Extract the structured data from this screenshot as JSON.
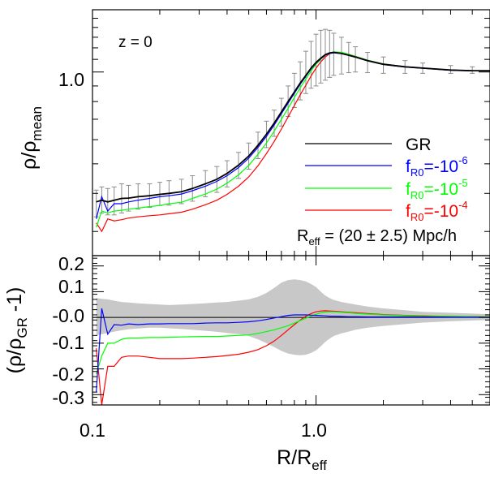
{
  "chart_data": [
    {
      "type": "line",
      "panel": "top",
      "annotation": "z = 0",
      "ylabel": "ρ/ρ_mean",
      "ylabel_main": "ρ/ρ",
      "ylabel_sub": "mean",
      "xscale": "log",
      "yscale": "log",
      "xlim": [
        0.1,
        6.0
      ],
      "ylim": [
        0.25,
        1.6
      ],
      "ytick_labels": [
        {
          "value": 1.0,
          "label": "1.0"
        }
      ],
      "legend_position": "center-right",
      "legend": [
        {
          "main": "GR",
          "sub": "",
          "eq": "",
          "sup": "",
          "color": "#000000"
        },
        {
          "main": "f",
          "sub": "R0",
          "eq": "=-10",
          "sup": "-6",
          "color": "#0000ff"
        },
        {
          "main": "f",
          "sub": "R0",
          "eq": "=-10",
          "sup": "-5",
          "color": "#00ff00"
        },
        {
          "main": "f",
          "sub": "R0",
          "eq": "=-10",
          "sup": "-4",
          "color": "#ff0000"
        }
      ],
      "radius_note": {
        "pre": "R",
        "sub": "eff",
        "post": " = (20 ± 2.5) Mpc/h"
      },
      "x": [
        0.104,
        0.11,
        0.117,
        0.125,
        0.135,
        0.145,
        0.16,
        0.18,
        0.2,
        0.22,
        0.25,
        0.28,
        0.32,
        0.36,
        0.4,
        0.45,
        0.5,
        0.55,
        0.6,
        0.65,
        0.7,
        0.75,
        0.8,
        0.85,
        0.9,
        0.95,
        1.0,
        1.05,
        1.1,
        1.15,
        1.2,
        1.3,
        1.4,
        1.5,
        1.7,
        2.0,
        2.5,
        3.0,
        4.0,
        5.0,
        6.0
      ],
      "series": [
        {
          "name": "GR",
          "color": "#000000",
          "values": [
            0.375,
            0.38,
            0.375,
            0.38,
            0.385,
            0.386,
            0.39,
            0.393,
            0.397,
            0.4,
            0.405,
            0.415,
            0.43,
            0.445,
            0.465,
            0.495,
            0.53,
            0.575,
            0.625,
            0.68,
            0.74,
            0.8,
            0.86,
            0.92,
            0.975,
            1.03,
            1.075,
            1.11,
            1.14,
            1.155,
            1.16,
            1.15,
            1.135,
            1.12,
            1.09,
            1.06,
            1.04,
            1.03,
            1.015,
            1.01,
            1.01
          ]
        },
        {
          "name": "fR0=-10^-6",
          "color": "#0000ff",
          "values": [
            0.33,
            0.39,
            0.35,
            0.37,
            0.37,
            0.375,
            0.38,
            0.385,
            0.39,
            0.393,
            0.398,
            0.408,
            0.422,
            0.438,
            0.457,
            0.486,
            0.522,
            0.566,
            0.615,
            0.67,
            0.73,
            0.79,
            0.852,
            0.912,
            0.968,
            1.023,
            1.07,
            1.105,
            1.135,
            1.15,
            1.155,
            1.148,
            1.133,
            1.118,
            1.088,
            1.058,
            1.038,
            1.028,
            1.013,
            1.008,
            1.008
          ]
        },
        {
          "name": "fR0=-10^-5",
          "color": "#00ff00",
          "values": [
            0.31,
            0.35,
            0.345,
            0.35,
            0.352,
            0.355,
            0.358,
            0.362,
            0.365,
            0.37,
            0.374,
            0.385,
            0.398,
            0.413,
            0.432,
            0.46,
            0.494,
            0.537,
            0.585,
            0.64,
            0.7,
            0.76,
            0.825,
            0.888,
            0.948,
            1.008,
            1.06,
            1.1,
            1.135,
            1.155,
            1.165,
            1.16,
            1.143,
            1.125,
            1.093,
            1.063,
            1.041,
            1.03,
            1.015,
            1.01,
            1.009
          ]
        },
        {
          "name": "fR0=-10^-4",
          "color": "#ff0000",
          "values": [
            0.32,
            0.3,
            0.33,
            0.325,
            0.328,
            0.332,
            0.335,
            0.338,
            0.34,
            0.343,
            0.347,
            0.355,
            0.367,
            0.38,
            0.397,
            0.422,
            0.453,
            0.493,
            0.54,
            0.592,
            0.65,
            0.712,
            0.777,
            0.842,
            0.905,
            0.97,
            1.03,
            1.08,
            1.12,
            1.148,
            1.16,
            1.158,
            1.143,
            1.125,
            1.093,
            1.063,
            1.041,
            1.03,
            1.015,
            1.01,
            1.01
          ]
        }
      ],
      "error_bars": {
        "x": [
          0.104,
          0.11,
          0.117,
          0.125,
          0.135,
          0.145,
          0.16,
          0.18,
          0.2,
          0.22,
          0.25,
          0.28,
          0.32,
          0.36,
          0.4,
          0.45,
          0.5,
          0.55,
          0.6,
          0.65,
          0.7,
          0.75,
          0.8,
          0.85,
          0.9,
          0.95,
          1.0,
          1.05,
          1.1,
          1.15,
          1.2,
          1.3,
          1.4,
          1.5,
          1.7,
          2.0,
          2.5,
          3.0,
          4.0,
          5.0
        ],
        "lower": [
          0.335,
          0.345,
          0.34,
          0.34,
          0.345,
          0.35,
          0.355,
          0.36,
          0.365,
          0.366,
          0.37,
          0.377,
          0.39,
          0.403,
          0.42,
          0.448,
          0.48,
          0.52,
          0.565,
          0.615,
          0.665,
          0.715,
          0.765,
          0.81,
          0.85,
          0.885,
          0.9,
          0.92,
          0.94,
          0.96,
          0.975,
          0.985,
          0.995,
          1.0,
          0.995,
          0.99,
          0.99,
          0.99,
          0.99,
          0.99
        ],
        "upper": [
          0.41,
          0.42,
          0.415,
          0.42,
          0.43,
          0.425,
          0.43,
          0.43,
          0.435,
          0.44,
          0.445,
          0.457,
          0.475,
          0.49,
          0.512,
          0.545,
          0.585,
          0.635,
          0.69,
          0.75,
          0.82,
          0.9,
          0.99,
          1.08,
          1.17,
          1.26,
          1.33,
          1.37,
          1.38,
          1.37,
          1.34,
          1.3,
          1.25,
          1.21,
          1.16,
          1.12,
          1.09,
          1.07,
          1.05,
          1.04
        ]
      }
    },
    {
      "type": "line",
      "panel": "bottom",
      "ylabel": "(ρ/ρ_GR -1)",
      "ylabel_open": "(ρ/ρ",
      "ylabel_sub": "GR",
      "ylabel_close": " -1)",
      "xlabel": "R/R_eff",
      "xlabel_main": "R/R",
      "xlabel_sub": "eff",
      "xscale": "log",
      "xlim": [
        0.1,
        6.0
      ],
      "ylim": [
        -0.34,
        0.24
      ],
      "xtick_labels": [
        {
          "value": 0.1,
          "label": "0.1"
        },
        {
          "value": 1.0,
          "label": "1.0"
        }
      ],
      "ytick_labels": [
        {
          "value": 0.2,
          "label": "0.2"
        },
        {
          "value": 0.1,
          "label": "0.1"
        },
        {
          "value": 0.0,
          "label": "-0.0"
        },
        {
          "value": -0.1,
          "label": "-0.1"
        },
        {
          "value": -0.2,
          "label": "-0.2"
        },
        {
          "value": -0.3,
          "label": "-0.3"
        }
      ],
      "reference_line": 0.0,
      "x": [
        0.104,
        0.11,
        0.117,
        0.125,
        0.135,
        0.145,
        0.16,
        0.18,
        0.2,
        0.22,
        0.25,
        0.28,
        0.32,
        0.36,
        0.4,
        0.45,
        0.5,
        0.55,
        0.6,
        0.65,
        0.7,
        0.75,
        0.8,
        0.85,
        0.9,
        0.95,
        1.0,
        1.05,
        1.1,
        1.15,
        1.2,
        1.3,
        1.4,
        1.5,
        1.7,
        2.0,
        2.5,
        3.0,
        4.0,
        5.0,
        6.0
      ],
      "shaded_band": {
        "color": "#c8c8c8",
        "upper": [
          0.075,
          0.072,
          0.07,
          0.065,
          0.06,
          0.058,
          0.055,
          0.052,
          0.05,
          0.048,
          0.05,
          0.052,
          0.055,
          0.058,
          0.06,
          0.065,
          0.07,
          0.08,
          0.095,
          0.115,
          0.135,
          0.145,
          0.148,
          0.145,
          0.14,
          0.13,
          0.118,
          0.1,
          0.085,
          0.075,
          0.068,
          0.06,
          0.055,
          0.05,
          0.042,
          0.035,
          0.028,
          0.022,
          0.018,
          0.015,
          0.012
        ],
        "lower": [
          -0.07,
          -0.065,
          -0.06,
          -0.055,
          -0.05,
          -0.046,
          -0.043,
          -0.04,
          -0.04,
          -0.042,
          -0.045,
          -0.048,
          -0.052,
          -0.056,
          -0.06,
          -0.065,
          -0.072,
          -0.085,
          -0.1,
          -0.115,
          -0.13,
          -0.14,
          -0.145,
          -0.147,
          -0.145,
          -0.138,
          -0.128,
          -0.112,
          -0.095,
          -0.082,
          -0.072,
          -0.062,
          -0.055,
          -0.048,
          -0.04,
          -0.033,
          -0.026,
          -0.02,
          -0.015,
          -0.012,
          -0.01
        ]
      },
      "series": [
        {
          "name": "fR0=-10^-6",
          "color": "#0000ff",
          "values": [
            -0.29,
            0.035,
            -0.065,
            -0.028,
            -0.03,
            -0.025,
            -0.028,
            -0.025,
            -0.025,
            -0.024,
            -0.024,
            -0.024,
            -0.022,
            -0.021,
            -0.021,
            -0.019,
            -0.017,
            -0.013,
            -0.008,
            -0.002,
            0.003,
            0.008,
            0.01,
            0.01,
            0.01,
            0.009,
            0.008,
            0.007,
            0.006,
            0.005,
            0.005,
            0.004,
            0.003,
            0.003,
            0.002,
            0.002,
            0.002,
            0.002,
            0.001,
            0.001,
            0.001
          ]
        },
        {
          "name": "fR0=-10^-5",
          "color": "#00ff00",
          "values": [
            -0.22,
            -0.15,
            -0.1,
            -0.1,
            -0.085,
            -0.08,
            -0.08,
            -0.078,
            -0.078,
            -0.077,
            -0.076,
            -0.075,
            -0.074,
            -0.074,
            -0.072,
            -0.07,
            -0.068,
            -0.062,
            -0.055,
            -0.048,
            -0.04,
            -0.032,
            -0.022,
            -0.012,
            -0.003,
            0.005,
            0.012,
            0.018,
            0.021,
            0.022,
            0.022,
            0.02,
            0.018,
            0.016,
            0.013,
            0.01,
            0.007,
            0.005,
            0.004,
            0.003,
            0.002
          ]
        },
        {
          "name": "fR0=-10^-4",
          "color": "#ff0000",
          "values": [
            -0.12,
            -0.34,
            -0.19,
            -0.19,
            -0.155,
            -0.15,
            -0.15,
            -0.155,
            -0.16,
            -0.16,
            -0.16,
            -0.158,
            -0.155,
            -0.152,
            -0.148,
            -0.143,
            -0.135,
            -0.125,
            -0.11,
            -0.092,
            -0.07,
            -0.048,
            -0.028,
            -0.01,
            0.005,
            0.015,
            0.022,
            0.025,
            0.026,
            0.025,
            0.024,
            0.022,
            0.02,
            0.018,
            0.015,
            0.011,
            0.008,
            0.006,
            0.004,
            0.003,
            0.002
          ]
        }
      ]
    }
  ]
}
